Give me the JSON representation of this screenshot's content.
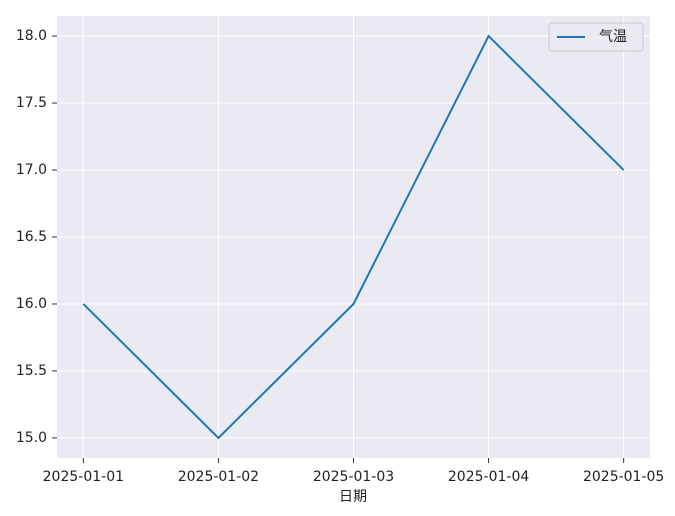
{
  "chart_data": {
    "type": "line",
    "xlabel": "日期",
    "categories": [
      "2025-01-01",
      "2025-01-02",
      "2025-01-03",
      "2025-01-04",
      "2025-01-05"
    ],
    "series": [
      {
        "name": "气温",
        "color": "#1f77b4",
        "values": [
          16,
          15,
          16,
          18,
          17
        ]
      }
    ],
    "ylim": [
      14.85,
      18.15
    ],
    "yticks": [
      {
        "value": 15,
        "label": "15.0"
      },
      {
        "value": 15.5,
        "label": "15.5"
      },
      {
        "value": 16,
        "label": "16.0"
      },
      {
        "value": 16.5,
        "label": "16.5"
      },
      {
        "value": 17,
        "label": "17.0"
      },
      {
        "value": 17.5,
        "label": "17.5"
      },
      {
        "value": 18,
        "label": "18.0"
      }
    ],
    "grid": true,
    "legend": "upper-right",
    "background": "#eaeaf2"
  }
}
